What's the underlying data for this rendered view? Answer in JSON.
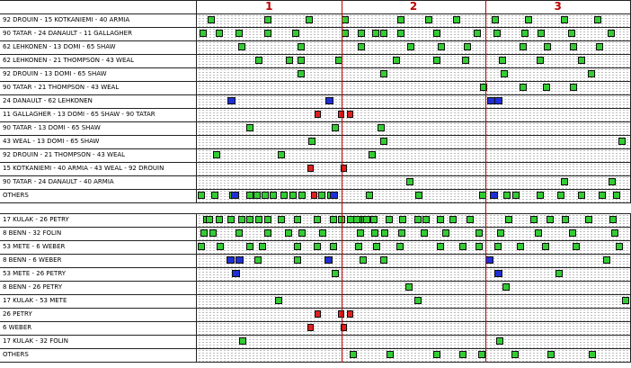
{
  "periods": [
    "1",
    "2",
    "3"
  ],
  "colors": {
    "green": "#33cc33",
    "blue": "#1e2fd6",
    "red": "#e02020",
    "period_line": "#c00000"
  },
  "section1": [
    {
      "label": "92 DROUIN - 15 KOTKANIEMI - 40 ARMIA",
      "events": [
        [
          "g",
          2.5
        ],
        [
          "g",
          15.5
        ],
        [
          "g",
          25.1
        ],
        [
          "g",
          33.4
        ],
        [
          "g",
          46.2
        ],
        [
          "g",
          52.6
        ],
        [
          "g",
          59.1
        ],
        [
          "g",
          68.1
        ],
        [
          "g",
          75.8
        ],
        [
          "g",
          84.1
        ],
        [
          "g",
          91.8
        ]
      ]
    },
    {
      "label": "90 TATAR - 24 DANAULT - 11 GALLAGHER",
      "events": [
        [
          "g",
          0.6
        ],
        [
          "g",
          4.4
        ],
        [
          "g",
          9
        ],
        [
          "g",
          15.5
        ],
        [
          "g",
          21.9
        ],
        [
          "g",
          33.4
        ],
        [
          "g",
          37.2
        ],
        [
          "g",
          40.5
        ],
        [
          "g",
          42.4
        ],
        [
          "g",
          46.2
        ],
        [
          "g",
          54.6
        ],
        [
          "g",
          63.9
        ],
        [
          "g",
          68.4
        ],
        [
          "g",
          74.9
        ],
        [
          "g",
          78.7
        ],
        [
          "g",
          85.7
        ],
        [
          "g",
          94.8
        ]
      ]
    },
    {
      "label": "62 LEHKONEN - 13 DOMI - 65 SHAW",
      "events": [
        [
          "g",
          9.6
        ],
        [
          "g",
          23.2
        ],
        [
          "g",
          37.2
        ],
        [
          "g",
          48.5
        ],
        [
          "g",
          55.5
        ],
        [
          "g",
          61.6
        ],
        [
          "g",
          74.5
        ],
        [
          "g",
          80.1
        ],
        [
          "g",
          86.1
        ],
        [
          "g",
          92.2
        ]
      ]
    },
    {
      "label": "62 LEHKONEN - 21 THOMPSON - 43 WEAL",
      "events": [
        [
          "g",
          13.5
        ],
        [
          "g",
          20.6
        ],
        [
          "g",
          23.2
        ],
        [
          "g",
          31.9
        ],
        [
          "g",
          45.2
        ],
        [
          "g",
          54.6
        ],
        [
          "g",
          61.1
        ],
        [
          "g",
          69.7
        ],
        [
          "g",
          78.4
        ],
        [
          "g",
          88
        ]
      ]
    },
    {
      "label": "92 DROUIN - 13 DOMI - 65 SHAW",
      "events": [
        [
          "g",
          23.2
        ],
        [
          "g",
          42.4
        ],
        [
          "g",
          70.1
        ],
        [
          "g",
          90.2
        ]
      ]
    },
    {
      "label": "90 TATAR - 21 THOMPSON - 43 WEAL",
      "events": [
        [
          "g",
          65.3
        ],
        [
          "g",
          74.5
        ],
        [
          "g",
          79.9
        ],
        [
          "g",
          86.1
        ]
      ]
    },
    {
      "label": "24 DANAULT - 62 LEHKONEN",
      "events": [
        [
          "b",
          7.1
        ],
        [
          "b",
          29.6
        ],
        [
          "b",
          67.1
        ],
        [
          "b",
          68.6
        ]
      ]
    },
    {
      "label": "11 GALLAGHER - 13 DOMI - 65 SHAW - 90 TATAR",
      "events": [
        [
          "r",
          27.1
        ],
        [
          "r",
          32.5
        ],
        [
          "r",
          34.6
        ]
      ]
    },
    {
      "label": "90 TATAR - 13 DOMI - 65 SHAW",
      "events": [
        [
          "g",
          11.4
        ],
        [
          "g",
          31.2
        ],
        [
          "g",
          41.7
        ]
      ]
    },
    {
      "label": "43 WEAL - 13 DOMI - 65 SHAW",
      "events": [
        [
          "g",
          25.8
        ],
        [
          "g",
          42.4
        ],
        [
          "g",
          97.4
        ]
      ]
    },
    {
      "label": "92 DROUIN - 21 THOMPSON - 43 WEAL",
      "events": [
        [
          "g",
          3.8
        ],
        [
          "g",
          18.7
        ],
        [
          "g",
          39.6
        ]
      ]
    },
    {
      "label": "15 KOTKANIEMI - 40 ARMIA - 43 WEAL - 92 DROUIN",
      "events": [
        [
          "r",
          25.5
        ],
        [
          "r",
          33.2
        ]
      ]
    },
    {
      "label": "90 TATAR - 24 DANAULT - 40 ARMIA",
      "events": [
        [
          "g",
          48.3
        ],
        [
          "g",
          84.1
        ],
        [
          "g",
          95.1
        ]
      ]
    },
    {
      "label": "OTHERS",
      "events": [
        [
          "g",
          0.3
        ],
        [
          "g",
          3.4
        ],
        [
          "g",
          7.4
        ],
        [
          "b",
          7.9
        ],
        [
          "g",
          11.5
        ],
        [
          "g",
          13.1
        ],
        [
          "g",
          14.9
        ],
        [
          "g",
          16.9
        ],
        [
          "g",
          19.2
        ],
        [
          "g",
          21.4
        ],
        [
          "g",
          23.4
        ],
        [
          "r",
          26.3
        ],
        [
          "g",
          28
        ],
        [
          "g",
          30.1
        ],
        [
          "b",
          30.7
        ],
        [
          "g",
          39
        ],
        [
          "g",
          50.5
        ],
        [
          "g",
          65.2
        ],
        [
          "b",
          67.6
        ],
        [
          "g",
          70.8
        ],
        [
          "g",
          72.8
        ],
        [
          "g",
          78.4
        ],
        [
          "g",
          83.2
        ],
        [
          "g",
          88
        ],
        [
          "g",
          92.7
        ],
        [
          "g",
          96
        ]
      ]
    }
  ],
  "section2": [
    {
      "label": "17 KULAK - 26 PETRY",
      "events": [
        [
          "g",
          1.5
        ],
        [
          "g",
          4.4
        ],
        [
          "g",
          11.4
        ],
        [
          "g",
          15.5
        ],
        [
          "g",
          18.7
        ],
        [
          "g",
          22.5
        ],
        [
          "g",
          26.9
        ],
        [
          "g",
          30.7
        ],
        [
          "g",
          34.6
        ],
        [
          "g",
          36.9
        ],
        [
          "g",
          37.9
        ],
        [
          "g",
          38.3
        ],
        [
          "g",
          36.2
        ],
        [
          "g",
          32.5
        ],
        [
          "g",
          2
        ],
        [
          "g",
          13.5
        ],
        [
          "g",
          9.6
        ],
        [
          "g",
          7.1
        ],
        [
          "g",
          40.1
        ],
        [
          "g",
          43.6
        ],
        [
          "g",
          46.7
        ],
        [
          "g",
          50.2
        ],
        [
          "g",
          52.1
        ],
        [
          "g",
          55.3
        ],
        [
          "g",
          58.3
        ],
        [
          "g",
          62.2
        ],
        [
          "g",
          71.2
        ],
        [
          "g",
          76.9
        ],
        [
          "g",
          80.7
        ],
        [
          "g",
          84.3
        ],
        [
          "g",
          89.6
        ],
        [
          "g",
          95.3
        ]
      ]
    },
    {
      "label": "8 BENN - 32 FOLIN",
      "events": [
        [
          "g",
          0.8
        ],
        [
          "g",
          2.9
        ],
        [
          "g",
          9
        ],
        [
          "g",
          15.5
        ],
        [
          "g",
          20.4
        ],
        [
          "g",
          23.4
        ],
        [
          "g",
          28.2
        ],
        [
          "g",
          36.9
        ],
        [
          "g",
          40.3
        ],
        [
          "g",
          42.6
        ],
        [
          "g",
          46.5
        ],
        [
          "g",
          51.7
        ],
        [
          "g",
          56.7
        ],
        [
          "g",
          64.3
        ],
        [
          "g",
          69.3
        ],
        [
          "g",
          78.1
        ],
        [
          "g",
          85.9
        ],
        [
          "g",
          95.7
        ]
      ]
    },
    {
      "label": "53 METE - 6 WEBER",
      "events": [
        [
          "g",
          0.3
        ],
        [
          "g",
          4.6
        ],
        [
          "g",
          11.4
        ],
        [
          "g",
          14.3
        ],
        [
          "g",
          22.5
        ],
        [
          "g",
          26.9
        ],
        [
          "g",
          30.7
        ],
        [
          "g",
          36.6
        ],
        [
          "g",
          40.7
        ],
        [
          "g",
          46.1
        ],
        [
          "g",
          55.3
        ],
        [
          "g",
          60.6
        ],
        [
          "g",
          64.3
        ],
        [
          "g",
          68.6
        ],
        [
          "g",
          73.8
        ],
        [
          "g",
          79.6
        ],
        [
          "g",
          86.7
        ],
        [
          "g",
          96.6
        ]
      ]
    },
    {
      "label": "8 BENN - 6 WEBER",
      "events": [
        [
          "b",
          6.8
        ],
        [
          "b",
          9
        ],
        [
          "g",
          13.3
        ],
        [
          "g",
          22.5
        ],
        [
          "b",
          29.4
        ],
        [
          "g",
          37.5
        ],
        [
          "g",
          42.4
        ],
        [
          "b",
          66.5
        ],
        [
          "g",
          93.8
        ]
      ]
    },
    {
      "label": "53 METE - 26 PETRY",
      "events": [
        [
          "b",
          8
        ],
        [
          "g",
          31.2
        ],
        [
          "b",
          68.6
        ],
        [
          "g",
          82.8
        ]
      ]
    },
    {
      "label": "8 BENN - 26 PETRY",
      "events": [
        [
          "g",
          48.1
        ],
        [
          "g",
          70.5
        ]
      ]
    },
    {
      "label": "17 KULAK - 53 METE",
      "events": [
        [
          "g",
          18.1
        ],
        [
          "g",
          50.3
        ],
        [
          "g",
          98.1
        ]
      ]
    },
    {
      "label": "26 PETRY",
      "events": [
        [
          "r",
          27.1
        ],
        [
          "r",
          32.5
        ],
        [
          "r",
          34.6
        ]
      ]
    },
    {
      "label": "6 WEBER",
      "events": [
        [
          "r",
          25.5
        ],
        [
          "r",
          33.2
        ]
      ]
    },
    {
      "label": "17 KULAK - 32 FOLIN",
      "events": [
        [
          "g",
          9.8
        ],
        [
          "g",
          69.1
        ]
      ]
    },
    {
      "label": "OTHERS",
      "events": [
        [
          "g",
          35.3
        ],
        [
          "g",
          43.8
        ],
        [
          "g",
          54.6
        ],
        [
          "g",
          60.6
        ],
        [
          "g",
          64.9
        ],
        [
          "g",
          72.6
        ],
        [
          "g",
          80.9
        ],
        [
          "g",
          90.4
        ]
      ]
    }
  ]
}
